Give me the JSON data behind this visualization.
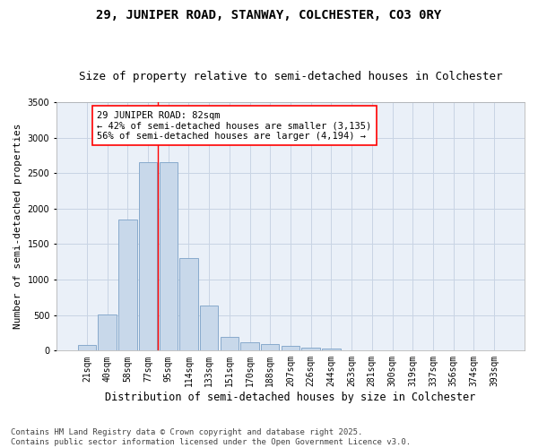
{
  "title1": "29, JUNIPER ROAD, STANWAY, COLCHESTER, CO3 0RY",
  "title2": "Size of property relative to semi-detached houses in Colchester",
  "xlabel": "Distribution of semi-detached houses by size in Colchester",
  "ylabel": "Number of semi-detached properties",
  "categories": [
    "21sqm",
    "40sqm",
    "58sqm",
    "77sqm",
    "95sqm",
    "114sqm",
    "133sqm",
    "151sqm",
    "170sqm",
    "188sqm",
    "207sqm",
    "226sqm",
    "244sqm",
    "263sqm",
    "281sqm",
    "300sqm",
    "319sqm",
    "337sqm",
    "356sqm",
    "374sqm",
    "393sqm"
  ],
  "values": [
    80,
    510,
    1850,
    2650,
    2650,
    1300,
    640,
    190,
    120,
    90,
    65,
    45,
    25,
    8,
    4,
    2,
    1,
    1,
    0,
    0,
    0
  ],
  "bar_color": "#c8d8ea",
  "bar_edgecolor": "#88aacc",
  "bar_linewidth": 0.7,
  "grid_color": "#c8d4e4",
  "bg_color": "#eaf0f8",
  "annotation_text": "29 JUNIPER ROAD: 82sqm\n← 42% of semi-detached houses are smaller (3,135)\n56% of semi-detached houses are larger (4,194) →",
  "ylim": [
    0,
    3500
  ],
  "yticks": [
    0,
    500,
    1000,
    1500,
    2000,
    2500,
    3000,
    3500
  ],
  "footnote": "Contains HM Land Registry data © Crown copyright and database right 2025.\nContains public sector information licensed under the Open Government Licence v3.0.",
  "title1_fontsize": 10,
  "title2_fontsize": 9,
  "xlabel_fontsize": 8.5,
  "ylabel_fontsize": 8,
  "tick_fontsize": 7,
  "annotation_fontsize": 7.5,
  "footnote_fontsize": 6.5
}
